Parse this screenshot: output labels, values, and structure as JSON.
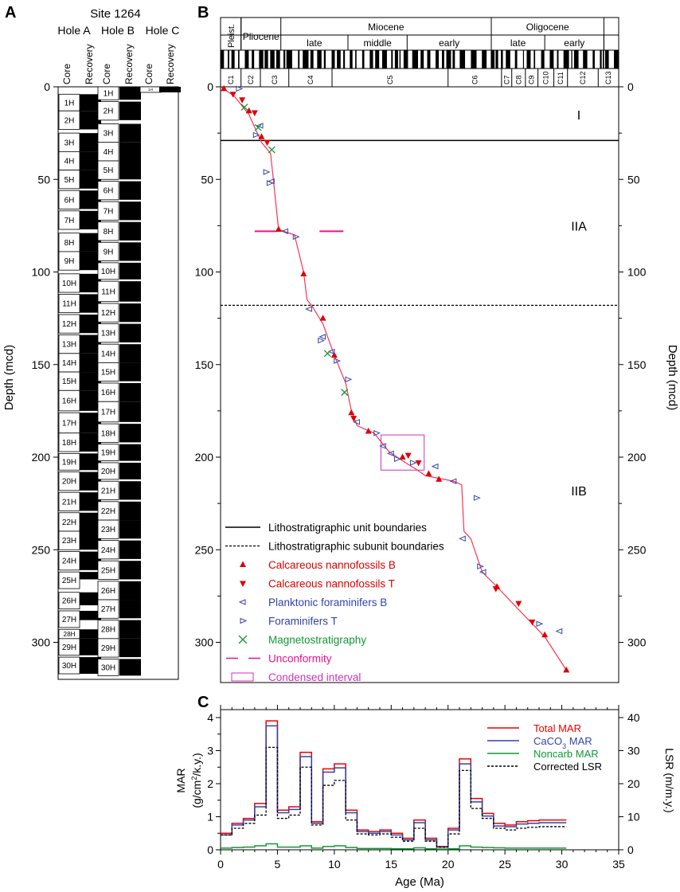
{
  "panel_labels": {
    "a": "A",
    "b": "B",
    "c": "C"
  },
  "site_title": "Site 1264",
  "holes": [
    {
      "name": "Hole A",
      "col_core": "Core",
      "col_recovery": "Recovery"
    },
    {
      "name": "Hole B",
      "col_core": "Core",
      "col_recovery": "Recovery"
    },
    {
      "name": "Hole C",
      "col_core": "Core",
      "col_recovery": "Recovery"
    }
  ],
  "axis_depth_label": "Depth (mcd)",
  "depth_ticks": [
    "0",
    "50",
    "100",
    "150",
    "200",
    "250",
    "300"
  ],
  "cores": {
    "holeA": [
      {
        "id": "1H",
        "top": 4,
        "base": 13,
        "rec_top": 4,
        "rec_base": 13
      },
      {
        "id": "2H",
        "top": 13,
        "base": 23,
        "rec_top": 13,
        "rec_base": 23
      },
      {
        "id": "3H",
        "top": 25,
        "base": 35,
        "rec_top": 25,
        "rec_base": 35
      },
      {
        "id": "4H",
        "top": 35,
        "base": 45,
        "rec_top": 35,
        "rec_base": 45
      },
      {
        "id": "5H",
        "top": 45,
        "base": 55,
        "rec_top": 45,
        "rec_base": 55
      },
      {
        "id": "6H",
        "top": 56,
        "base": 66,
        "rec_top": 56,
        "rec_base": 66
      },
      {
        "id": "7H",
        "top": 67,
        "base": 77,
        "rec_top": 67,
        "rec_base": 77
      },
      {
        "id": "8H",
        "top": 79,
        "base": 89,
        "rec_top": 79,
        "rec_base": 89
      },
      {
        "id": "9H",
        "top": 89,
        "base": 99,
        "rec_top": 89,
        "rec_base": 99
      },
      {
        "id": "10H",
        "top": 101,
        "base": 111,
        "rec_top": 101,
        "rec_base": 111
      },
      {
        "id": "11H",
        "top": 112,
        "base": 122,
        "rec_top": 112,
        "rec_base": 122
      },
      {
        "id": "12H",
        "top": 123,
        "base": 133,
        "rec_top": 123,
        "rec_base": 133
      },
      {
        "id": "13H",
        "top": 134,
        "base": 144,
        "rec_top": 134,
        "rec_base": 144
      },
      {
        "id": "14H",
        "top": 144,
        "base": 154,
        "rec_top": 144,
        "rec_base": 154
      },
      {
        "id": "15H",
        "top": 154,
        "base": 164,
        "rec_top": 154,
        "rec_base": 164
      },
      {
        "id": "16H",
        "top": 164,
        "base": 175,
        "rec_top": 164,
        "rec_base": 175
      },
      {
        "id": "17H",
        "top": 176,
        "base": 187,
        "rec_top": 176,
        "rec_base": 187
      },
      {
        "id": "18H",
        "top": 187,
        "base": 197,
        "rec_top": 187,
        "rec_base": 197
      },
      {
        "id": "19H",
        "top": 198,
        "base": 207,
        "rec_top": 198,
        "rec_base": 207
      },
      {
        "id": "20H",
        "top": 208,
        "base": 218,
        "rec_top": 208,
        "rec_base": 218
      },
      {
        "id": "21H",
        "top": 219,
        "base": 229,
        "rec_top": 219,
        "rec_base": 229
      },
      {
        "id": "22H",
        "top": 230,
        "base": 240,
        "rec_top": 230,
        "rec_base": 240
      },
      {
        "id": "23H",
        "top": 240,
        "base": 250,
        "rec_top": 240,
        "rec_base": 250
      },
      {
        "id": "24H",
        "top": 251,
        "base": 261,
        "rec_top": 251,
        "rec_base": 261
      },
      {
        "id": "25H",
        "top": 262,
        "base": 271,
        "rec_top": 262,
        "rec_base": 266
      },
      {
        "id": "26H",
        "top": 273,
        "base": 282,
        "rec_top": 273,
        "rec_base": 280
      },
      {
        "id": "27H",
        "top": 283,
        "base": 292,
        "rec_top": 283,
        "rec_base": 288
      },
      {
        "id": "28H",
        "top": 293,
        "base": 298,
        "rec_top": 293,
        "rec_base": 298
      },
      {
        "id": "29H",
        "top": 298,
        "base": 307,
        "rec_top": 298,
        "rec_base": 307
      },
      {
        "id": "30H",
        "top": 308,
        "base": 317,
        "rec_top": 308,
        "rec_base": 317
      }
    ],
    "holeB": [
      {
        "id": "1H",
        "top": 0,
        "base": 7,
        "rec_top": 0,
        "rec_base": 7
      },
      {
        "id": "2H",
        "top": 8,
        "base": 18,
        "rec_top": 8,
        "rec_base": 18
      },
      {
        "id": "3H",
        "top": 20,
        "base": 30,
        "rec_top": 20,
        "rec_base": 30
      },
      {
        "id": "4H",
        "top": 30,
        "base": 40,
        "rec_top": 30,
        "rec_base": 40
      },
      {
        "id": "5H",
        "top": 40,
        "base": 50,
        "rec_top": 40,
        "rec_base": 50
      },
      {
        "id": "6H",
        "top": 51,
        "base": 61,
        "rec_top": 51,
        "rec_base": 61
      },
      {
        "id": "7H",
        "top": 62,
        "base": 72,
        "rec_top": 62,
        "rec_base": 72
      },
      {
        "id": "8H",
        "top": 73,
        "base": 83,
        "rec_top": 73,
        "rec_base": 83
      },
      {
        "id": "9H",
        "top": 84,
        "base": 94,
        "rec_top": 84,
        "rec_base": 94
      },
      {
        "id": "10H",
        "top": 95,
        "base": 104,
        "rec_top": 95,
        "rec_base": 104
      },
      {
        "id": "11H",
        "top": 105,
        "base": 116,
        "rec_top": 105,
        "rec_base": 116
      },
      {
        "id": "12H",
        "top": 117,
        "base": 127,
        "rec_top": 117,
        "rec_base": 127
      },
      {
        "id": "13H",
        "top": 128,
        "base": 138,
        "rec_top": 128,
        "rec_base": 138
      },
      {
        "id": "14H",
        "top": 139,
        "base": 149,
        "rec_top": 139,
        "rec_base": 149
      },
      {
        "id": "15H",
        "top": 149,
        "base": 159,
        "rec_top": 149,
        "rec_base": 159
      },
      {
        "id": "16H",
        "top": 160,
        "base": 170,
        "rec_top": 160,
        "rec_base": 170
      },
      {
        "id": "17H",
        "top": 170,
        "base": 181,
        "rec_top": 170,
        "rec_base": 181
      },
      {
        "id": "18H",
        "top": 182,
        "base": 192,
        "rec_top": 182,
        "rec_base": 192
      },
      {
        "id": "19H",
        "top": 193,
        "base": 202,
        "rec_top": 193,
        "rec_base": 202
      },
      {
        "id": "20H",
        "top": 203,
        "base": 212,
        "rec_top": 203,
        "rec_base": 212
      },
      {
        "id": "21H",
        "top": 213,
        "base": 223,
        "rec_top": 213,
        "rec_base": 223
      },
      {
        "id": "22H",
        "top": 224,
        "base": 234,
        "rec_top": 224,
        "rec_base": 234
      },
      {
        "id": "23H",
        "top": 234,
        "base": 244,
        "rec_top": 234,
        "rec_base": 244
      },
      {
        "id": "24H",
        "top": 245,
        "base": 255,
        "rec_top": 245,
        "rec_base": 255
      },
      {
        "id": "25H",
        "top": 256,
        "base": 266,
        "rec_top": 256,
        "rec_base": 266
      },
      {
        "id": "26H",
        "top": 267,
        "base": 277,
        "rec_top": 267,
        "rec_base": 277
      },
      {
        "id": "27H",
        "top": 277,
        "base": 287,
        "rec_top": 277,
        "rec_base": 287
      },
      {
        "id": "28H",
        "top": 288,
        "base": 298,
        "rec_top": 288,
        "rec_base": 298
      },
      {
        "id": "29H",
        "top": 298,
        "base": 308,
        "rec_top": 298,
        "rec_base": 308
      },
      {
        "id": "30H",
        "top": 309,
        "base": 318,
        "rec_top": 309,
        "rec_base": 318
      }
    ],
    "holeC": [
      {
        "id": "1H",
        "top": 0,
        "base": 3,
        "rec_top": 0,
        "rec_base": 3
      }
    ]
  },
  "timescale": {
    "epochs": [
      {
        "label": "Pleist.",
        "from": 0,
        "to": 1.8
      },
      {
        "label": "Pliocene",
        "from": 1.8,
        "to": 5.3
      },
      {
        "label": "Miocene",
        "from": 5.3,
        "to": 23.8
      },
      {
        "label": "Oligocene",
        "from": 23.8,
        "to": 33.7
      }
    ],
    "subepochs": [
      {
        "label": "late",
        "from": 5.3,
        "to": 11.2
      },
      {
        "label": "middle",
        "from": 11.2,
        "to": 16.4
      },
      {
        "label": "early",
        "from": 16.4,
        "to": 23.8
      },
      {
        "label": "late",
        "from": 23.8,
        "to": 28.5
      },
      {
        "label": "early",
        "from": 28.5,
        "to": 33.7
      }
    ],
    "chrons": [
      {
        "label": "C1",
        "from": 0,
        "to": 1.8
      },
      {
        "label": "C2",
        "from": 1.8,
        "to": 3.5
      },
      {
        "label": "C3",
        "from": 3.5,
        "to": 6.0
      },
      {
        "label": "C4",
        "from": 6.0,
        "to": 9.8
      },
      {
        "label": "C5",
        "from": 9.8,
        "to": 20.0
      },
      {
        "label": "C6",
        "from": 20.0,
        "to": 24.7
      },
      {
        "label": "C7",
        "from": 24.7,
        "to": 25.6
      },
      {
        "label": "C8",
        "from": 25.6,
        "to": 26.8
      },
      {
        "label": "C9",
        "from": 26.8,
        "to": 27.9
      },
      {
        "label": "C10",
        "from": 27.9,
        "to": 29.3
      },
      {
        "label": "C11",
        "from": 29.3,
        "to": 30.5
      },
      {
        "label": "C12",
        "from": 30.5,
        "to": 33.2
      },
      {
        "label": "C13",
        "from": 33.2,
        "to": 35.0
      }
    ]
  },
  "chart_data": [
    {
      "type": "scatter",
      "panel": "B",
      "ylabel": "Depth (mcd)",
      "xlim": [
        0,
        35
      ],
      "ylim": [
        320,
        0
      ],
      "age_depth_line": {
        "x": [
          0,
          1.2,
          2.5,
          3.6,
          4.4,
          5.1,
          6.5,
          7.3,
          7.6,
          8.0,
          9.0,
          10.0,
          11.0,
          11.5,
          12.0,
          13.5,
          14.8,
          16.0,
          17.3,
          18.0,
          20.5,
          21.2,
          21.4,
          22.0,
          23.0,
          24.3,
          26.0,
          28.5,
          30.4
        ],
        "y": [
          0,
          5,
          15,
          30,
          36,
          77,
          80,
          100,
          115,
          118,
          128,
          145,
          160,
          175,
          183,
          187,
          197,
          202,
          207,
          210,
          213,
          215,
          240,
          244,
          262,
          270,
          281,
          297,
          315
        ]
      },
      "calc_nanno_B": {
        "x": [
          0.3,
          2.5,
          3.6,
          5.1,
          7.3,
          9.0,
          10.0,
          11.5,
          13.0,
          16.0,
          18.3,
          19.2,
          24.3,
          28.5,
          30.4
        ],
        "y": [
          1,
          13,
          27,
          77,
          101,
          125,
          145,
          176,
          186,
          200,
          209,
          212,
          270,
          296,
          315
        ]
      },
      "calc_nanno_T": {
        "x": [
          1.1,
          1.9,
          3.0,
          4.1,
          11.7,
          16.5,
          17.4,
          24.2,
          26.2,
          27.4
        ],
        "y": [
          4,
          7,
          14,
          30,
          179,
          199,
          203,
          271,
          279,
          289
        ]
      },
      "planktonic_foram_B": {
        "x": [
          3.5,
          4.5,
          5.7,
          7.8,
          9.0,
          9.8,
          12.0,
          14.3,
          15.0,
          18.9,
          20.5,
          21.3,
          23.1,
          29.8
        ],
        "y": [
          21,
          51,
          78,
          120,
          135,
          143,
          181,
          194,
          198,
          205,
          213,
          244,
          262,
          294
        ]
      },
      "foram_T": {
        "x": [
          1.6,
          3.1,
          4.0,
          4.3,
          6.6,
          8.8,
          10.2,
          11.2,
          13.7,
          15.5,
          16.9,
          22.5,
          22.8,
          28.0
        ],
        "y": [
          1,
          26,
          46,
          52,
          81,
          137,
          148,
          158,
          187,
          201,
          203,
          222,
          259,
          290
        ]
      },
      "magnetostratigraphy": {
        "x": [
          2.1,
          3.3,
          4.5,
          9.4,
          10.9
        ],
        "y": [
          11,
          22,
          34,
          144,
          165
        ]
      },
      "unconformity_depth": 78,
      "unconformity_age_range": [
        3.0,
        10.8
      ],
      "condensed_interval": {
        "age": [
          14.1,
          17.9
        ],
        "depth": [
          188,
          207
        ]
      },
      "lithostratigraphic_unit_boundary": 29,
      "lithostratigraphic_subunit_boundary": 118,
      "units": [
        {
          "label": "I",
          "depth": 15
        },
        {
          "label": "IIA",
          "depth": 75
        },
        {
          "label": "IIB",
          "depth": 218
        }
      ],
      "legend": [
        {
          "key": "unit_boundary",
          "label": "Lithostratigraphic unit boundaries",
          "color": "#000000"
        },
        {
          "key": "subunit_boundary",
          "label": "Lithostratigraphic subunit boundaries",
          "color": "#000000"
        },
        {
          "key": "calc_nanno_B",
          "label": "Calcareous nannofossils B",
          "color": "#dd0000"
        },
        {
          "key": "calc_nanno_T",
          "label": "Calcareous nannofossils T",
          "color": "#dd0000"
        },
        {
          "key": "planktonic_foram_B",
          "label": "Planktonic foraminifers B",
          "color": "#3344aa"
        },
        {
          "key": "foram_T",
          "label": "Foraminifers T",
          "color": "#3344aa"
        },
        {
          "key": "magnetostratigraphy",
          "label": "Magnetostratigraphy",
          "color": "#119933"
        },
        {
          "key": "unconformity",
          "label": "Unconformity",
          "color": "#ee1188"
        },
        {
          "key": "condensed",
          "label": "Condensed interval",
          "color": "#cc33bb"
        }
      ]
    },
    {
      "type": "line",
      "panel": "C",
      "xlabel": "Age (Ma)",
      "ylabel": "MAR (g/cm²/k.y.)",
      "y2label": "LSR (m/m.y.)",
      "xlim": [
        0,
        35
      ],
      "ylim": [
        0,
        4
      ],
      "y2lim": [
        0,
        40
      ],
      "xticks": [
        "0",
        "5",
        "10",
        "15",
        "20",
        "25",
        "30",
        "35"
      ],
      "yticks": [
        "0",
        "1",
        "2",
        "3",
        "4"
      ],
      "y2ticks": [
        "0",
        "10",
        "20",
        "30",
        "40"
      ],
      "step_edges": [
        0,
        1,
        2,
        3,
        4,
        5,
        6,
        7,
        8,
        9,
        10,
        11,
        12,
        13,
        14,
        15,
        16,
        17,
        18,
        19,
        20,
        21,
        22,
        23,
        24,
        25,
        26,
        27,
        28,
        29,
        30.4
      ],
      "series": [
        {
          "name": "Total MAR",
          "color": "#ee0000",
          "values": [
            0.5,
            0.8,
            0.95,
            1.4,
            3.9,
            1.2,
            1.3,
            2.95,
            0.85,
            2.45,
            2.6,
            1.2,
            0.6,
            0.55,
            0.6,
            0.5,
            0.35,
            0.9,
            0.35,
            0.1,
            0.65,
            2.75,
            1.55,
            1.1,
            0.8,
            0.75,
            0.85,
            0.88,
            0.9,
            0.9
          ]
        },
        {
          "name": "CaCO3 MAR",
          "label_main": "CaCO",
          "label_sub": "3",
          "label_rest": " MAR",
          "color": "#3344aa",
          "values": [
            0.45,
            0.75,
            0.9,
            1.3,
            3.75,
            1.12,
            1.22,
            2.82,
            0.8,
            2.35,
            2.48,
            1.12,
            0.55,
            0.5,
            0.55,
            0.45,
            0.3,
            0.82,
            0.3,
            0.08,
            0.6,
            2.6,
            1.45,
            1.02,
            0.72,
            0.7,
            0.78,
            0.8,
            0.82,
            0.82
          ]
        },
        {
          "name": "Noncarb MAR",
          "color": "#119933",
          "values": [
            0.05,
            0.07,
            0.08,
            0.12,
            0.18,
            0.08,
            0.08,
            0.12,
            0.05,
            0.1,
            0.12,
            0.07,
            0.04,
            0.04,
            0.04,
            0.03,
            0.03,
            0.06,
            0.03,
            0.02,
            0.03,
            0.12,
            0.08,
            0.07,
            0.06,
            0.05,
            0.05,
            0.05,
            0.05,
            0.05
          ]
        },
        {
          "name": "Corrected LSR",
          "color": "#000000",
          "dashed": true,
          "values": [
            4.5,
            6.5,
            8,
            10.5,
            31,
            9.5,
            10.5,
            25,
            7.5,
            19.5,
            21,
            9,
            4.8,
            4.5,
            4.8,
            3.8,
            2.6,
            6.5,
            2.6,
            0.8,
            4.8,
            24,
            12.5,
            9.5,
            6.5,
            6,
            6.5,
            6.8,
            7,
            7
          ]
        }
      ]
    }
  ]
}
